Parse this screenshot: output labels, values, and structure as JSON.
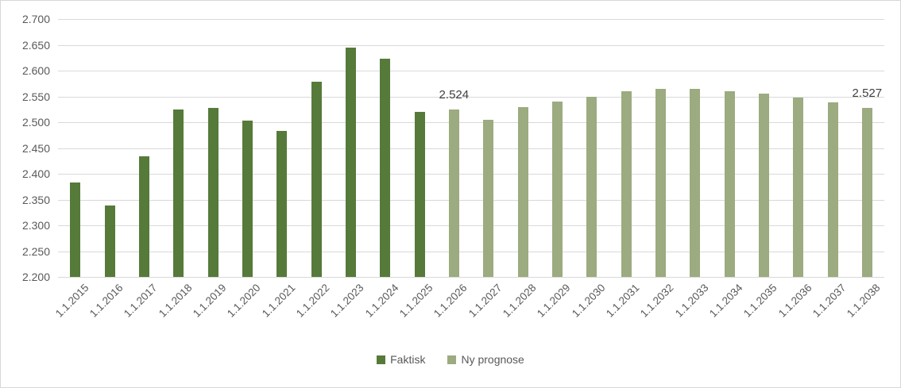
{
  "chart_data": {
    "type": "bar",
    "categories": [
      "1.1.2015",
      "1.1.2016",
      "1.1.2017",
      "1.1.2018",
      "1.1.2019",
      "1.1.2020",
      "1.1.2021",
      "1.1.2022",
      "1.1.2023",
      "1.1.2024",
      "1.1.2025",
      "1.1.2026",
      "1.1.2027",
      "1.1.2028",
      "1.1.2029",
      "1.1.2030",
      "1.1.2031",
      "1.1.2032",
      "1.1.2033",
      "1.1.2034",
      "1.1.2035",
      "1.1.2036",
      "1.1.2037",
      "1.1.2038"
    ],
    "series": [
      {
        "name": "Faktisk",
        "color": "#567a3a",
        "values": [
          2383,
          2338,
          2434,
          2525,
          2528,
          2503,
          2483,
          2578,
          2644,
          2623,
          2520,
          null,
          null,
          null,
          null,
          null,
          null,
          null,
          null,
          null,
          null,
          null,
          null,
          null
        ]
      },
      {
        "name": "Ny prognose",
        "color": "#9cab80",
        "values": [
          null,
          null,
          null,
          null,
          null,
          null,
          null,
          null,
          null,
          null,
          null,
          2524,
          2505,
          2530,
          2540,
          2550,
          2560,
          2565,
          2565,
          2560,
          2555,
          2548,
          2538,
          2527
        ]
      }
    ],
    "title": "",
    "xlabel": "",
    "ylabel": "",
    "ylim": [
      2200,
      2700
    ],
    "grid": true,
    "legend_position": "bottom",
    "yticks": [
      {
        "value": 2700,
        "label": "2.700"
      },
      {
        "value": 2650,
        "label": "2.650"
      },
      {
        "value": 2600,
        "label": "2.600"
      },
      {
        "value": 2550,
        "label": "2.550"
      },
      {
        "value": 2500,
        "label": "2.500"
      },
      {
        "value": 2450,
        "label": "2.450"
      },
      {
        "value": 2400,
        "label": "2.400"
      },
      {
        "value": 2350,
        "label": "2.350"
      },
      {
        "value": 2300,
        "label": "2.300"
      },
      {
        "value": 2250,
        "label": "2.250"
      },
      {
        "value": 2200,
        "label": "2.200"
      }
    ],
    "annotations": [
      {
        "category_index": 11,
        "label": "2.524"
      },
      {
        "category_index": 23,
        "label": "2.527"
      }
    ]
  },
  "colors": {
    "faktisk": "#567a3a",
    "ny_prognose": "#9cab80",
    "gridline": "#d9d9d9",
    "axis_text": "#595959",
    "data_label_text": "#404040",
    "chart_border": "#d7d7d7",
    "background": "#ffffff"
  },
  "legend": {
    "faktisk_label": "Faktisk",
    "ny_prognose_label": "Ny prognose"
  }
}
